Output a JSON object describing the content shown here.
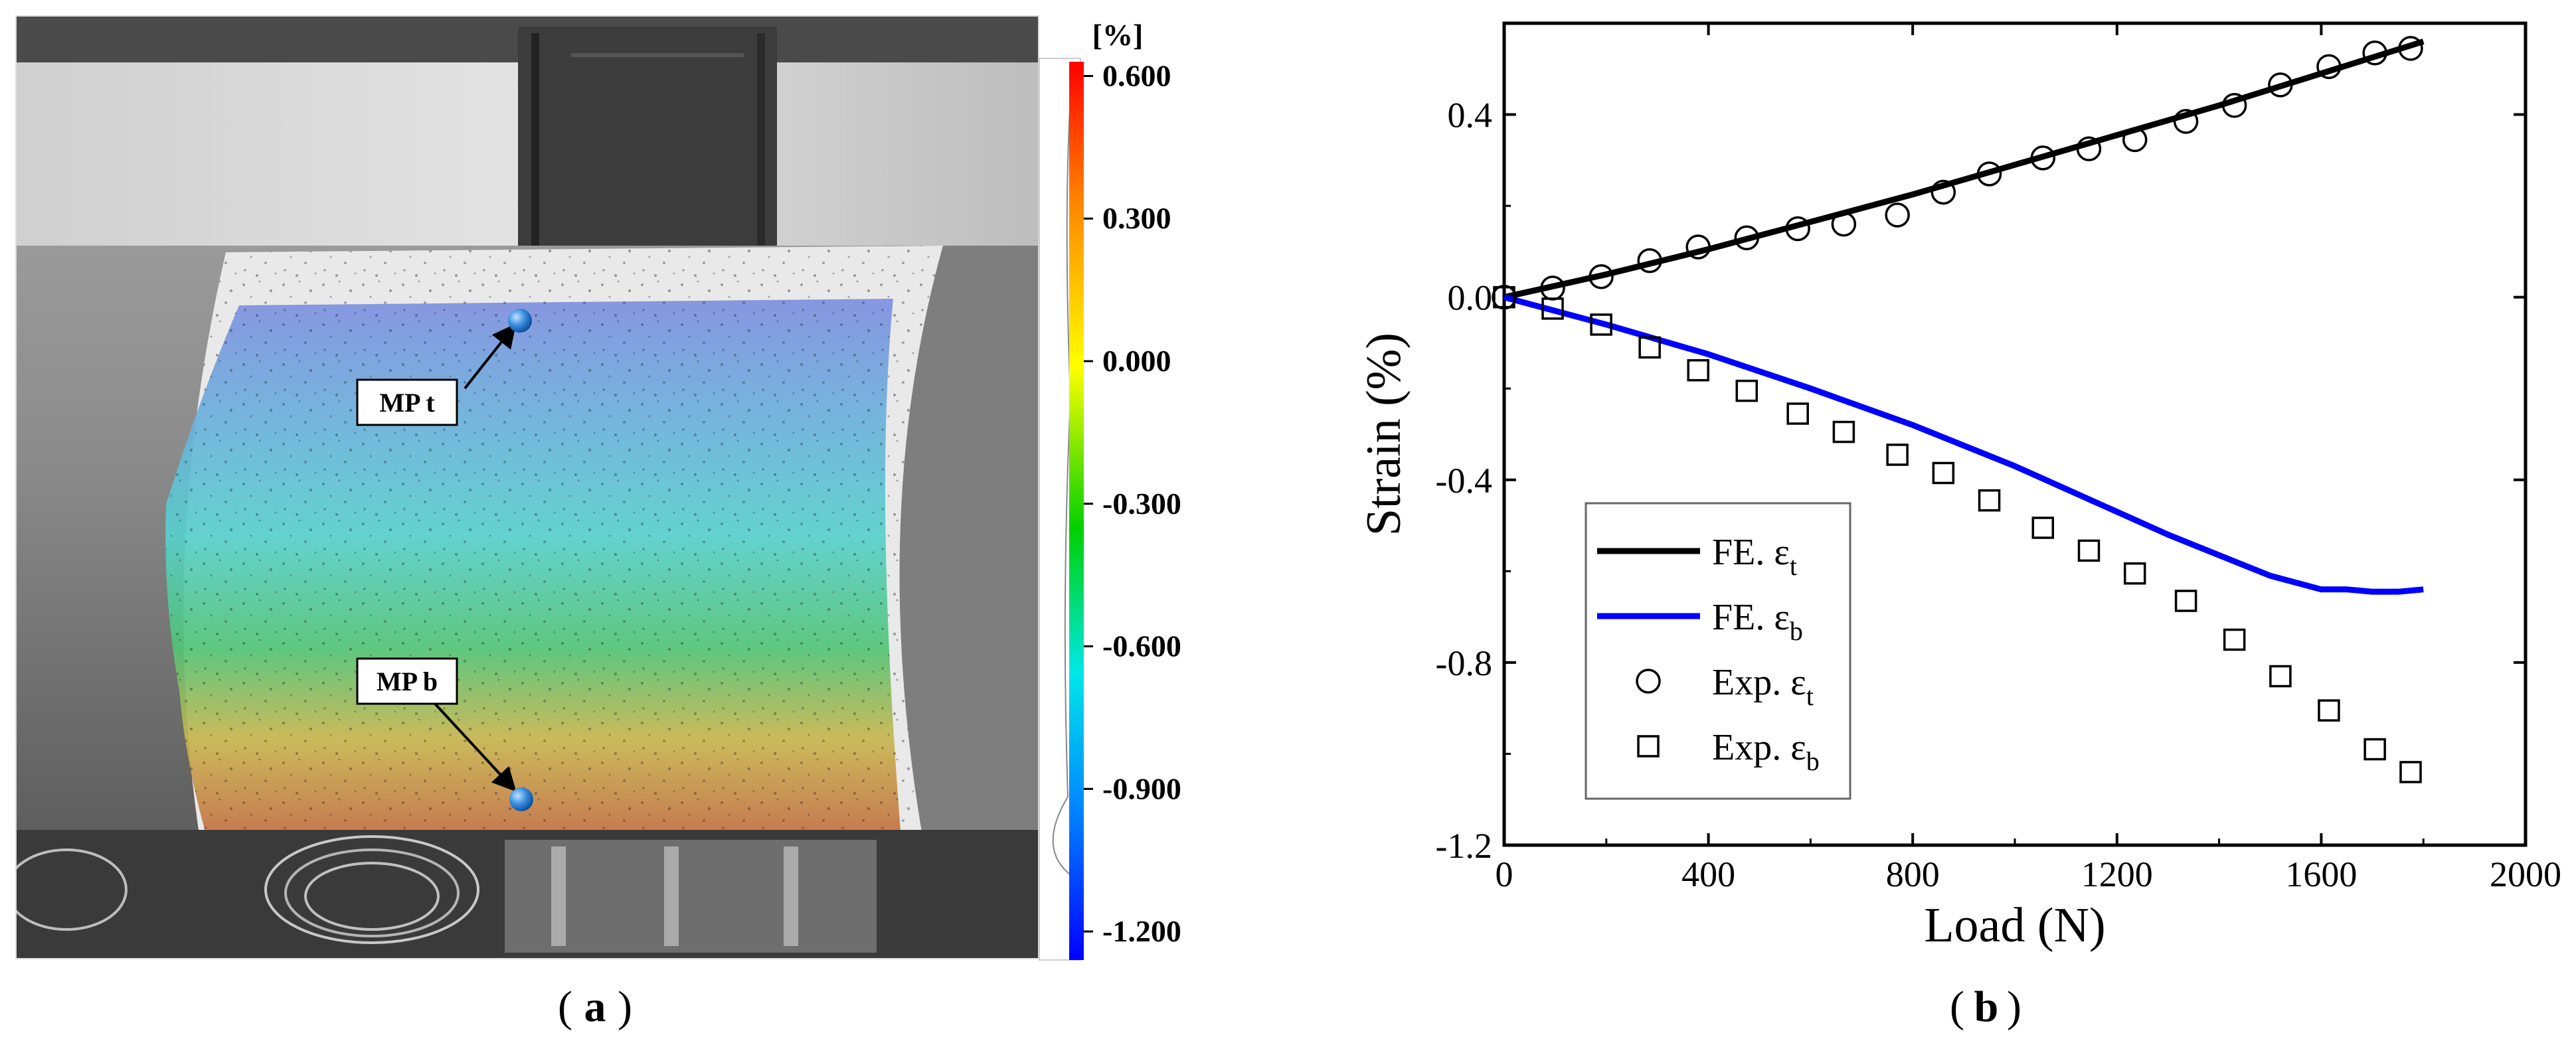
{
  "panel_a": {
    "caption": "a",
    "colorbar": {
      "unit": "[%]",
      "ticks": [
        "0.600",
        "0.300",
        "0.000",
        "-0.300",
        "-0.600",
        "-0.900",
        "-1.200"
      ],
      "tick_values": [
        0.6,
        0.3,
        0.0,
        -0.3,
        -0.6,
        -0.9,
        -1.2
      ],
      "range": [
        -1.26,
        0.63
      ],
      "colors": [
        "#ff0000",
        "#ff8800",
        "#ffff00",
        "#00d000",
        "#00e8e8",
        "#0080ff",
        "#0000ff"
      ]
    },
    "markers": [
      {
        "label": "MP t",
        "value_hint": "top"
      },
      {
        "label": "MP b",
        "value_hint": "bottom"
      }
    ]
  },
  "panel_b": {
    "caption": "b"
  },
  "chart_data": {
    "type": "line",
    "title": "",
    "xlabel": "Load (N)",
    "ylabel": "Strain (%)",
    "xlim": [
      0,
      2000
    ],
    "ylim": [
      -1.2,
      0.6
    ],
    "xticks": [
      0,
      400,
      800,
      1200,
      1600,
      2000
    ],
    "xtick_labels": [
      "0",
      "400",
      "800",
      "1200",
      "1600",
      "2000"
    ],
    "yticks": [
      0.4,
      0.0,
      -0.4,
      -0.8,
      -1.2
    ],
    "ytick_labels": [
      "0.4",
      "0.0",
      "-0.4",
      "-0.8",
      "-1.2"
    ],
    "grid": false,
    "legend_position": "bottom-left",
    "series": [
      {
        "name": "FE. ε",
        "subscript": "t",
        "kind": "line",
        "color": "#000000",
        "x": [
          0,
          200,
          400,
          600,
          800,
          1000,
          1200,
          1400,
          1600,
          1800
        ],
        "y": [
          0.0,
          0.05,
          0.105,
          0.165,
          0.225,
          0.29,
          0.355,
          0.42,
          0.49,
          0.56
        ]
      },
      {
        "name": "FE. ε",
        "subscript": "b",
        "kind": "line",
        "color": "#0000ff",
        "x": [
          0,
          200,
          400,
          600,
          800,
          1000,
          1100,
          1200,
          1300,
          1400,
          1500,
          1600,
          1650,
          1700,
          1750,
          1800
        ],
        "y": [
          0.0,
          -0.06,
          -0.125,
          -0.2,
          -0.28,
          -0.37,
          -0.42,
          -0.47,
          -0.52,
          -0.565,
          -0.61,
          -0.64,
          -0.64,
          -0.645,
          -0.645,
          -0.64
        ]
      },
      {
        "name": "Exp. ε",
        "subscript": "t",
        "kind": "scatter",
        "marker": "circle",
        "color": "#000000",
        "x": [
          0,
          95,
          190,
          285,
          380,
          475,
          575,
          665,
          770,
          860,
          950,
          1055,
          1145,
          1235,
          1335,
          1430,
          1520,
          1615,
          1705,
          1775
        ],
        "y": [
          0.0,
          0.02,
          0.045,
          0.08,
          0.11,
          0.13,
          0.15,
          0.16,
          0.18,
          0.23,
          0.27,
          0.305,
          0.325,
          0.345,
          0.385,
          0.42,
          0.465,
          0.505,
          0.535,
          0.545
        ]
      },
      {
        "name": "Exp. ε",
        "subscript": "b",
        "kind": "scatter",
        "marker": "square",
        "color": "#000000",
        "x": [
          0,
          95,
          190,
          285,
          380,
          475,
          575,
          665,
          770,
          860,
          950,
          1055,
          1145,
          1235,
          1335,
          1430,
          1520,
          1615,
          1705,
          1775
        ],
        "y": [
          0.0,
          -0.025,
          -0.06,
          -0.11,
          -0.16,
          -0.205,
          -0.255,
          -0.295,
          -0.345,
          -0.385,
          -0.445,
          -0.505,
          -0.555,
          -0.605,
          -0.665,
          -0.75,
          -0.83,
          -0.905,
          -0.99,
          -1.04
        ]
      }
    ]
  }
}
